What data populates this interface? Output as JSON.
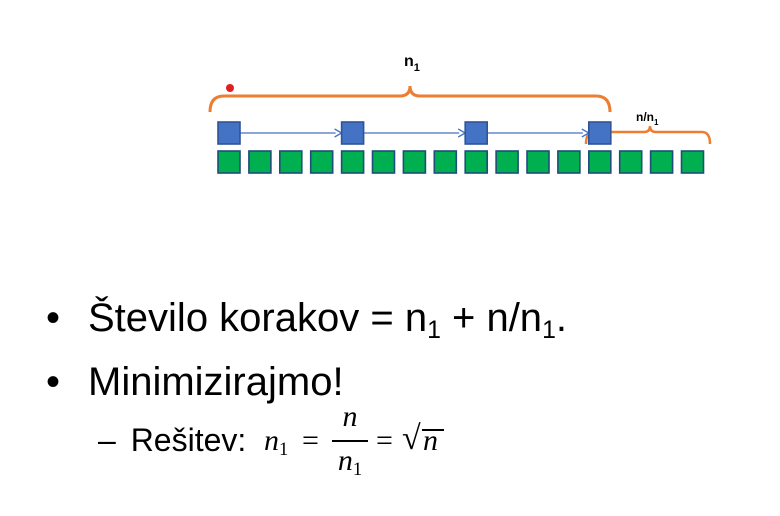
{
  "diagram": {
    "top_brace_label": "n",
    "top_brace_label_sub": "1",
    "small_brace_label": "n/n",
    "small_brace_label_sub": "1",
    "green_block_count": 16,
    "blue_block_positions": [
      0,
      4,
      8,
      12
    ],
    "colors": {
      "brace": "#ED7D31",
      "blue_fill": "#4472C4",
      "blue_stroke": "#2F5597",
      "green_fill": "#00B050",
      "green_stroke": "#1F4E79",
      "arrow": "#4472C4",
      "dot": "#E02020"
    }
  },
  "bullets": [
    {
      "marker": "•",
      "text_parts": [
        "Število korakov =  n",
        "1",
        " + n/n",
        "1",
        "."
      ]
    },
    {
      "marker": "•",
      "text": "Minimizirajmo!"
    }
  ],
  "sub_bullet": {
    "marker": "–",
    "label": "Rešitev:",
    "formula": {
      "lhs": "n",
      "lhs_sub": "1",
      "eq1": "=",
      "frac_num": "n",
      "frac_den": "n",
      "frac_den_sub": "1",
      "eq2": "=",
      "sqrt_symbol": "√",
      "radicand": "n"
    }
  }
}
